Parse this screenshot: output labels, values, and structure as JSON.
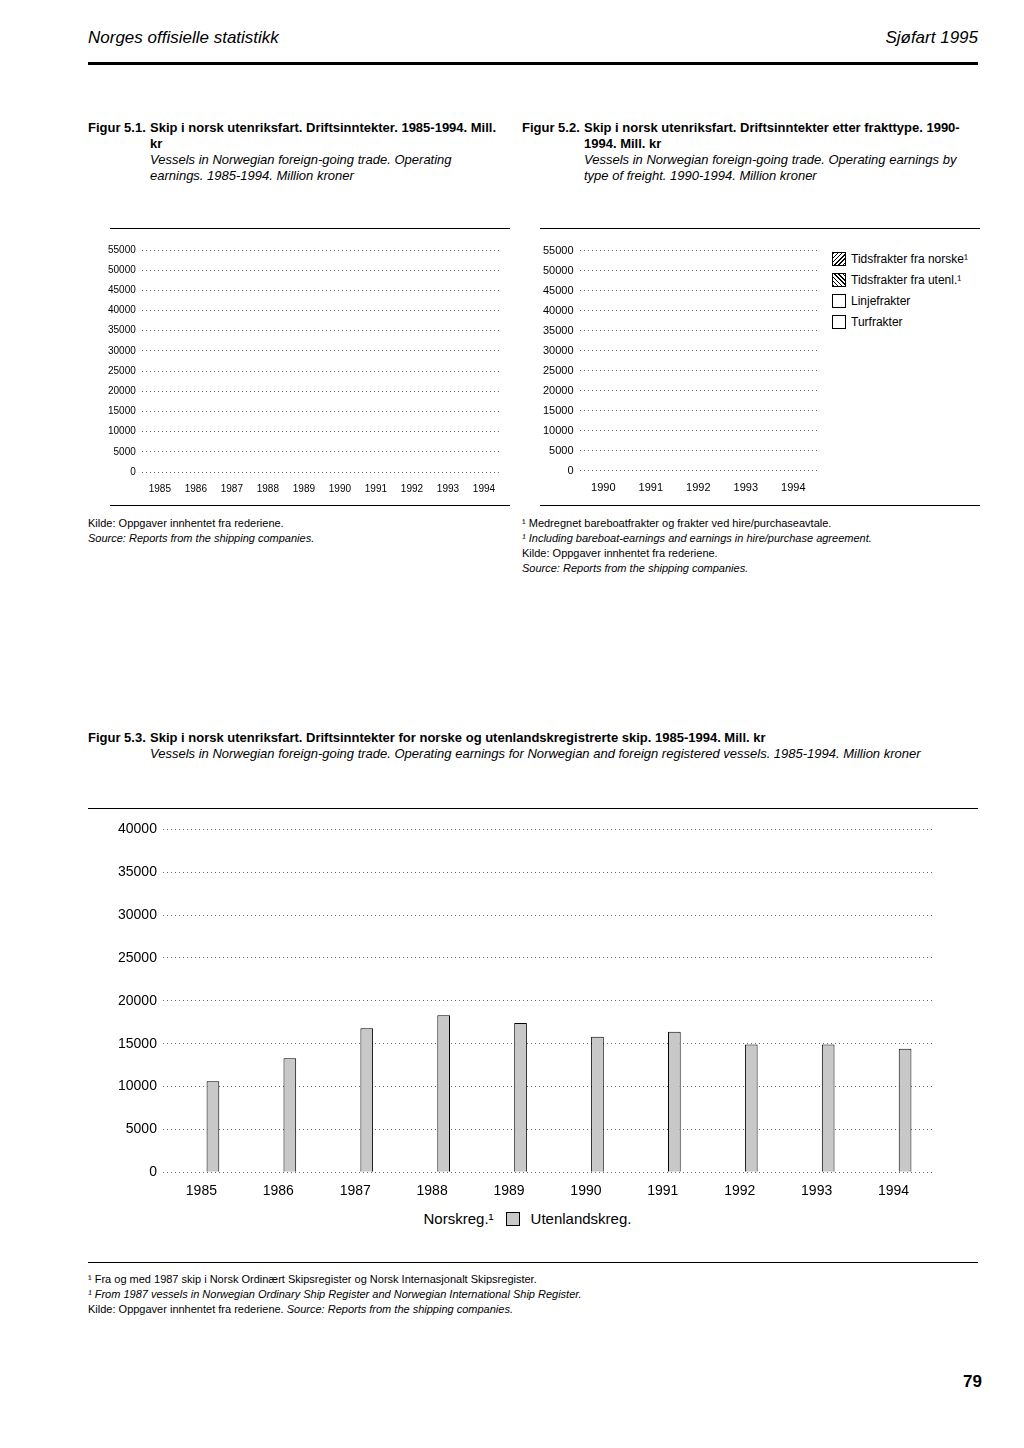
{
  "header": {
    "left": "Norges offisielle statistikk",
    "right": "Sjøfart 1995"
  },
  "chart_data": [
    {
      "type": "bar",
      "figure_label": "Figur 5.1.",
      "title": "Skip i norsk utenriksfart. Driftsinntekter. 1985-1994. Mill. kr",
      "subtitle": "Vessels in Norwegian foreign-going trade. Operating earnings. 1985-1994. Million kroner",
      "categories": [
        "1985",
        "1986",
        "1987",
        "1988",
        "1989",
        "1990",
        "1991",
        "1992",
        "1993",
        "1994"
      ],
      "values": [
        null,
        null,
        null,
        null,
        null,
        null,
        null,
        null,
        null,
        null
      ],
      "color": "#c8c8c8",
      "ylim": [
        0,
        55000
      ],
      "yticks": [
        0,
        5000,
        10000,
        15000,
        20000,
        25000,
        30000,
        35000,
        40000,
        45000,
        50000,
        55000
      ],
      "grid": true,
      "source": [
        "Kilde: Oppgaver innhentet fra rederiene.",
        "Source: Reports from the shipping companies."
      ]
    },
    {
      "type": "bar",
      "figure_label": "Figur 5.2.",
      "title": "Skip i norsk utenriksfart. Driftsinntekter etter frakttype. 1990-1994. Mill. kr",
      "subtitle": "Vessels in Norwegian foreign-going trade. Operating earnings by type of freight. 1990-1994. Million kroner",
      "categories": [
        "1990",
        "1991",
        "1992",
        "1993",
        "1994"
      ],
      "series": [
        {
          "name": "Tidsfrakter fra norske¹",
          "color": "#ffffff",
          "values": [
            null,
            null,
            null,
            null,
            null
          ]
        },
        {
          "name": "Tidsfrakter fra utenl.¹",
          "color": "#ffffff",
          "values": [
            null,
            null,
            null,
            null,
            null
          ]
        },
        {
          "name": "Linjefrakter",
          "color": "#ffffff",
          "values": [
            null,
            null,
            null,
            null,
            null
          ]
        },
        {
          "name": "Turfrakter",
          "color": "#ffffff",
          "values": [
            null,
            null,
            null,
            null,
            null
          ]
        }
      ],
      "stacked": true,
      "ylim": [
        0,
        55000
      ],
      "yticks": [
        0,
        5000,
        10000,
        15000,
        20000,
        25000,
        30000,
        35000,
        40000,
        45000,
        50000,
        55000
      ],
      "grid": true,
      "legend": "right",
      "footnotes": [
        "¹ Medregnet bareboatfrakter og frakter ved hire/purchaseavtale.",
        "¹ Including bareboat-earnings and earnings in hire/purchase agreement."
      ],
      "source": [
        "Kilde: Oppgaver innhentet fra rederiene.",
        "Source: Reports from the shipping companies."
      ]
    },
    {
      "type": "bar",
      "figure_label": "Figur 5.3.",
      "title": "Skip i norsk utenriksfart. Driftsinntekter for norske og utenlandskregistrerte skip. 1985-1994. Mill. kr",
      "subtitle": "Vessels in Norwegian foreign-going trade. Operating earnings for Norwegian and foreign registered vessels. 1985-1994. Million kroner",
      "categories": [
        "1985",
        "1986",
        "1987",
        "1988",
        "1989",
        "1990",
        "1991",
        "1992",
        "1993",
        "1994"
      ],
      "series": [
        {
          "name": "Norskreg.¹",
          "color": "#ffffff",
          "values": [
            null,
            null,
            null,
            null,
            null,
            null,
            null,
            null,
            null,
            null
          ]
        },
        {
          "name": "Utenlandskreg.",
          "color": "#c8c8c8",
          "values": [
            10600,
            13300,
            16800,
            18300,
            17400,
            15800,
            16400,
            14900,
            14900,
            14400
          ]
        }
      ],
      "ylim": [
        0,
        40000
      ],
      "yticks": [
        0,
        5000,
        10000,
        15000,
        20000,
        25000,
        30000,
        35000,
        40000
      ],
      "grid": true,
      "legend": "bottom",
      "footnotes": [
        "¹ Fra og med 1987 skip i Norsk Ordinært Skipsregister og Norsk Internasjonalt Skipsregister.",
        "¹ From 1987 vessels in Norwegian Ordinary Ship Register and Norwegian International Ship Register."
      ],
      "source": [
        "Kilde: Oppgaver innhentet fra rederiene.",
        "Source: Reports from the shipping companies."
      ]
    }
  ],
  "page_number": "79"
}
